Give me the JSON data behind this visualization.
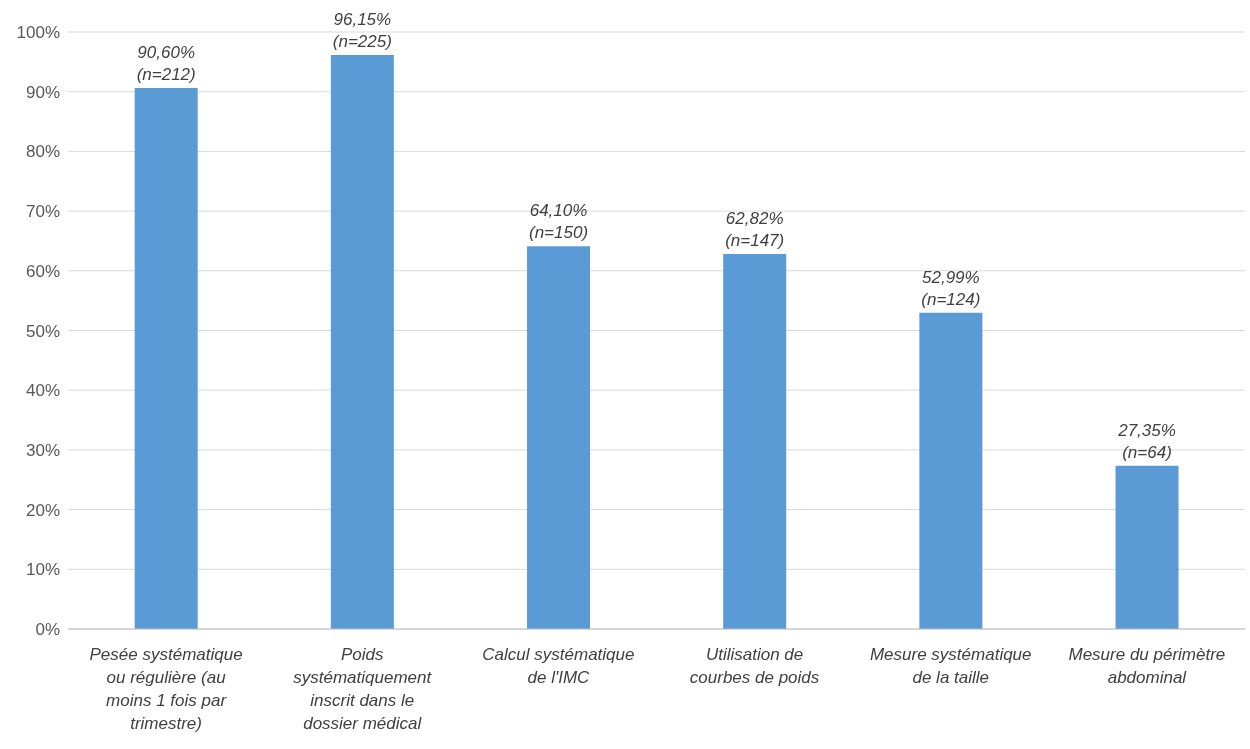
{
  "chart_data": {
    "type": "bar",
    "categories": [
      "Pesée systématique ou régulière (au moins 1 fois par trimestre)",
      "Poids systématiquement inscrit dans le dossier médical",
      "Calcul systématique de l'IMC",
      "Utilisation de courbes de poids",
      "Mesure systématique de la taille",
      "Mesure du périmètre abdominal"
    ],
    "values": [
      90.6,
      96.15,
      64.1,
      62.82,
      52.99,
      27.35
    ],
    "value_labels": [
      "90,60%\n(n=212)",
      "96,15%\n(n=225)",
      "64,10%\n(n=150)",
      "62,82%\n(n=147)",
      "52,99%\n(n=124)",
      "27,35%\n(n=64)"
    ],
    "color": "#5b9bd5",
    "ylim": [
      0,
      100
    ],
    "yticks": [
      {
        "value": 0,
        "label": "0%"
      },
      {
        "value": 10,
        "label": "10%"
      },
      {
        "value": 20,
        "label": "20%"
      },
      {
        "value": 30,
        "label": "30%"
      },
      {
        "value": 40,
        "label": "40%"
      },
      {
        "value": 50,
        "label": "50%"
      },
      {
        "value": 60,
        "label": "60%"
      },
      {
        "value": 70,
        "label": "70%"
      },
      {
        "value": 80,
        "label": "80%"
      },
      {
        "value": 90,
        "label": "90%"
      },
      {
        "value": 100,
        "label": "100%"
      }
    ],
    "grid": "y"
  }
}
